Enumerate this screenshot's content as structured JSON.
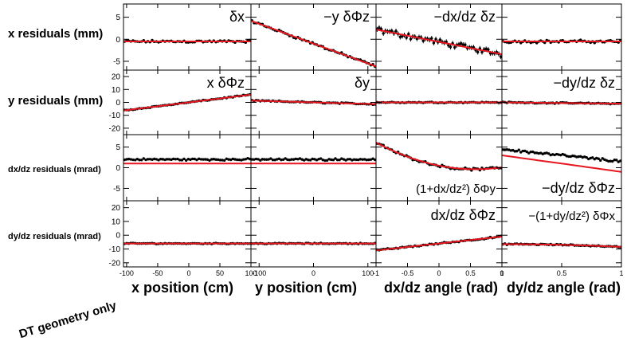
{
  "figure": {
    "row_labels": [
      "x residuals (mm)",
      "y residuals (mm)",
      "dx/dz residuals (mrad)",
      "dy/dz residuals (mrad)"
    ],
    "column_labels": [
      "x position (cm)",
      "y position (cm)",
      "dx/dz angle (rad)",
      "dy/dz angle (rad)"
    ],
    "note": "DT geometry only",
    "colors": {
      "points": "#000000",
      "fit": "#e8161e",
      "axes": "#000000"
    }
  },
  "chart_data": {
    "type": "scatter",
    "rows": [
      {
        "ylabel": "x residuals (mm)",
        "ylim": [
          -7,
          8
        ],
        "yticks": [
          -5,
          0,
          5
        ]
      },
      {
        "ylabel": "y residuals (mm)",
        "ylim": [
          -25,
          25
        ],
        "yticks": [
          -20,
          -10,
          0,
          10,
          20
        ]
      },
      {
        "ylabel": "dx/dz residuals (mrad)",
        "ylim": [
          -8,
          8
        ],
        "yticks": [
          -5,
          0,
          5
        ]
      },
      {
        "ylabel": "dy/dz residuals (mrad)",
        "ylim": [
          -23,
          25
        ],
        "yticks": [
          -20,
          -10,
          0,
          10,
          20
        ]
      }
    ],
    "columns": [
      {
        "xlabel": "x position (cm)",
        "xlim": [
          -105,
          100
        ],
        "xticks": [
          -100,
          -50,
          0,
          50,
          100
        ]
      },
      {
        "xlabel": "y position (cm)",
        "xlim": [
          -115,
          115
        ],
        "xticks": [
          -100,
          0,
          100
        ]
      },
      {
        "xlabel": "dx/dz angle (rad)",
        "xlim": [
          -1,
          1
        ],
        "xticks": [
          -1,
          -0.5,
          0,
          0.5,
          1
        ]
      },
      {
        "xlabel": "dy/dz angle (rad)",
        "xlim": [
          0,
          1
        ],
        "xticks": [
          0,
          0.5,
          1
        ]
      }
    ],
    "panels": [
      {
        "row": 0,
        "col": 0,
        "label": "δx",
        "points": {
          "model": "line",
          "a": -0.5,
          "b": 0.0,
          "spread": 0.35,
          "n": 60
        },
        "fit": {
          "model": "line",
          "a": -0.5,
          "b": 0.0
        }
      },
      {
        "row": 0,
        "col": 1,
        "label": "−y δΦz",
        "points": {
          "model": "line",
          "a": -1.0,
          "b": -0.045,
          "spread": 0.35,
          "n": 60
        },
        "fit": {
          "model": "line",
          "a": -1.0,
          "b": -0.045
        }
      },
      {
        "row": 0,
        "col": 2,
        "label": "−dx/dz δz",
        "points": {
          "model": "line",
          "a": -0.6,
          "b": -2.8,
          "spread": 0.8,
          "n": 60,
          "errorbars": true
        },
        "fit": {
          "model": "line",
          "a": -0.6,
          "b": -2.8
        }
      },
      {
        "row": 0,
        "col": 3,
        "label": "",
        "points": {
          "model": "line",
          "a": -0.5,
          "b": 0.0,
          "spread": 0.4,
          "n": 60
        },
        "fit": {
          "model": "line",
          "a": -0.5,
          "b": 0.0
        }
      },
      {
        "row": 1,
        "col": 0,
        "label": "x δΦz",
        "points": {
          "model": "line",
          "a": 0.0,
          "b": 0.06,
          "spread": 0.5,
          "n": 60
        },
        "fit": {
          "model": "line",
          "a": 0.0,
          "b": 0.06
        }
      },
      {
        "row": 1,
        "col": 1,
        "label": "δy",
        "points": {
          "model": "line",
          "a": 0.0,
          "b": -0.012,
          "spread": 0.6,
          "n": 60
        },
        "fit": {
          "model": "line",
          "a": 0.0,
          "b": -0.012
        }
      },
      {
        "row": 1,
        "col": 2,
        "label": "",
        "points": {
          "model": "line",
          "a": 0.0,
          "b": 0.0,
          "spread": 0.5,
          "n": 60
        },
        "fit": {
          "model": "line",
          "a": 0.0,
          "b": 0.0
        }
      },
      {
        "row": 1,
        "col": 3,
        "label": "−dy/dz δz",
        "points": {
          "model": "line",
          "a": 0.0,
          "b": -1.0,
          "spread": 0.5,
          "n": 60
        },
        "fit": {
          "model": "line",
          "a": 0.0,
          "b": -1.0
        }
      },
      {
        "row": 2,
        "col": 0,
        "label": "",
        "points": {
          "model": "line",
          "a": 2.0,
          "b": 0.0,
          "spread": 0.3,
          "n": 60
        },
        "fit": {
          "model": "line",
          "a": 1.0,
          "b": 0.0
        }
      },
      {
        "row": 2,
        "col": 1,
        "label": "",
        "points": {
          "model": "line",
          "a": 2.0,
          "b": 0.0,
          "spread": 0.3,
          "n": 60
        },
        "fit": {
          "model": "line",
          "a": 1.0,
          "b": 0.0
        }
      },
      {
        "row": 2,
        "col": 2,
        "label": "(1+dx/dz²) δΦy",
        "points": {
          "model": "quad",
          "a": 0.5,
          "b": -3.0,
          "c": 2.6,
          "spread": 0.35,
          "n": 60
        },
        "fit": {
          "model": "quad",
          "a": 0.5,
          "b": -3.0,
          "c": 2.6
        }
      },
      {
        "row": 2,
        "col": 3,
        "label": "−dy/dz δΦz",
        "points": {
          "model": "line",
          "a": 4.5,
          "b": -3.0,
          "spread": 0.4,
          "n": 60
        },
        "fit": {
          "model": "line",
          "a": 3.0,
          "b": -4.0
        }
      },
      {
        "row": 3,
        "col": 0,
        "label": "",
        "points": {
          "model": "line",
          "a": -6.0,
          "b": 0.0,
          "spread": 0.4,
          "n": 60
        },
        "fit": {
          "model": "line",
          "a": -6.0,
          "b": 0.0
        }
      },
      {
        "row": 3,
        "col": 1,
        "label": "",
        "points": {
          "model": "line",
          "a": -6.0,
          "b": 0.0,
          "spread": 0.4,
          "n": 60
        },
        "fit": {
          "model": "line",
          "a": -6.0,
          "b": 0.0
        }
      },
      {
        "row": 3,
        "col": 2,
        "label": "dx/dz δΦz",
        "points": {
          "model": "line",
          "a": -6.0,
          "b": 5.0,
          "spread": 0.6,
          "n": 60
        },
        "fit": {
          "model": "line",
          "a": -6.0,
          "b": 5.0
        }
      },
      {
        "row": 3,
        "col": 3,
        "label": "−(1+dy/dz²) δΦx",
        "points": {
          "model": "quad",
          "a": -6.5,
          "b": 0.0,
          "c": -2.0,
          "spread": 0.5,
          "n": 60
        },
        "fit": {
          "model": "quad",
          "a": -6.5,
          "b": 0.0,
          "c": -2.0
        }
      }
    ]
  }
}
